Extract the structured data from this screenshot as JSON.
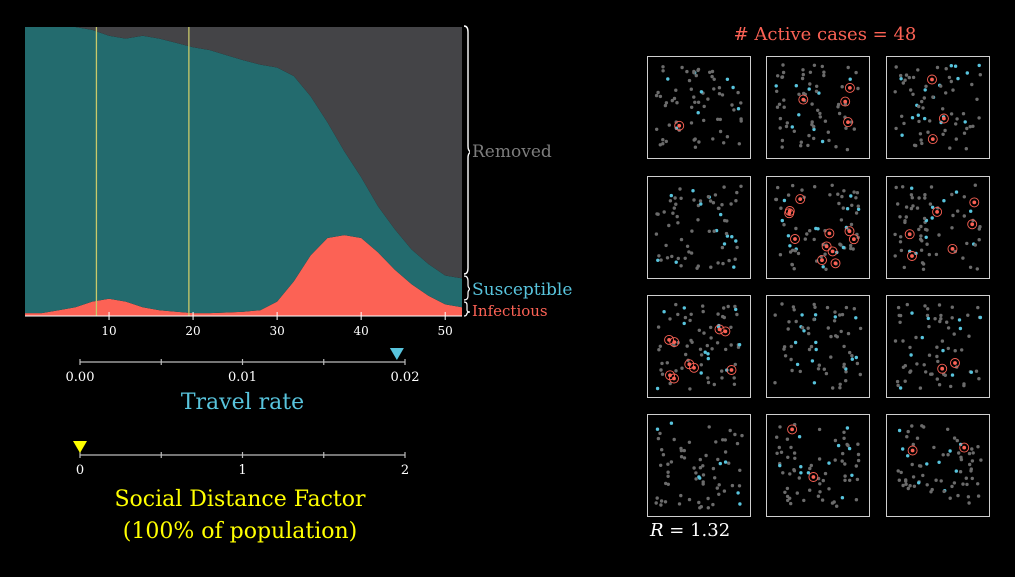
{
  "chart_data": {
    "type": "area",
    "stacked": true,
    "x": [
      0,
      2,
      4,
      6,
      8,
      10,
      12,
      14,
      16,
      18,
      20,
      22,
      24,
      26,
      28,
      30,
      32,
      34,
      36,
      38,
      40,
      42,
      44,
      46,
      48,
      50,
      52
    ],
    "series": [
      {
        "name": "Infectious",
        "color": "#fc6255",
        "values": [
          0.01,
          0.01,
          0.02,
          0.03,
          0.05,
          0.06,
          0.05,
          0.03,
          0.02,
          0.015,
          0.01,
          0.01,
          0.012,
          0.015,
          0.02,
          0.05,
          0.12,
          0.21,
          0.27,
          0.28,
          0.27,
          0.22,
          0.16,
          0.11,
          0.07,
          0.04,
          0.03
        ]
      },
      {
        "name": "Susceptible",
        "color": "#236b6e",
        "values": [
          0.99,
          0.99,
          0.98,
          0.97,
          0.94,
          0.91,
          0.91,
          0.94,
          0.94,
          0.93,
          0.92,
          0.91,
          0.89,
          0.87,
          0.85,
          0.81,
          0.71,
          0.55,
          0.4,
          0.29,
          0.21,
          0.16,
          0.14,
          0.12,
          0.11,
          0.1,
          0.1
        ]
      },
      {
        "name": "Removed",
        "color": "#444447",
        "values": [
          0.0,
          0.0,
          0.0,
          0.0,
          0.01,
          0.03,
          0.04,
          0.03,
          0.04,
          0.055,
          0.07,
          0.08,
          0.098,
          0.115,
          0.13,
          0.14,
          0.17,
          0.24,
          0.33,
          0.43,
          0.52,
          0.62,
          0.7,
          0.77,
          0.82,
          0.86,
          0.87
        ]
      }
    ],
    "xlim": [
      0,
      52
    ],
    "ylim": [
      0,
      1
    ],
    "x_ticks": [
      "10",
      "20",
      "30",
      "40",
      "50"
    ],
    "vertical_markers": [
      8.5,
      19.5
    ],
    "labels": {
      "removed": "Removed",
      "susceptible": "Susceptible",
      "infectious": "Infectious"
    }
  },
  "travel_slider": {
    "title": "Travel rate",
    "ticks": [
      "0.00",
      "0.01",
      "0.02"
    ],
    "value": 0.0195,
    "range": [
      0,
      0.02
    ],
    "handle_color": "#58c4dd"
  },
  "sd_slider": {
    "title_line1": "Social Distance Factor",
    "title_line2": "(100% of population)",
    "ticks": [
      "0",
      "1",
      "2"
    ],
    "value": 0,
    "range": [
      0,
      2
    ],
    "handle_color": "#ffff00"
  },
  "simulation": {
    "active_cases_text": "# Active cases = 48",
    "r_symbol": "R",
    "r_text": " = 1.32",
    "infected_per_city": [
      1,
      4,
      3,
      0,
      11,
      6,
      9,
      0,
      2,
      0,
      2,
      2
    ],
    "colors": {
      "susceptible": "#58c4dd",
      "infectious": "#fc6255",
      "removed": "#6b6b6b"
    }
  }
}
